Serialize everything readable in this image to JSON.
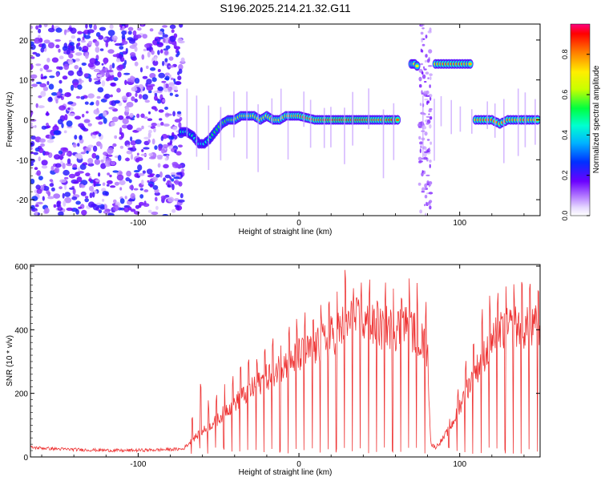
{
  "figure_title": "S196.2025.214.21.32.G11",
  "chart_data": [
    {
      "type": "heatmap",
      "xlabel": "Height of straight line (km)",
      "ylabel": "Frequency (Hz)",
      "xlim": [
        -167,
        150
      ],
      "ylim": [
        -24,
        24
      ],
      "x_ticks": [
        -100,
        0,
        100
      ],
      "x_tick_labels": [
        "-100",
        "0",
        "100"
      ],
      "y_ticks": [
        -20,
        -10,
        0,
        10,
        20
      ],
      "y_tick_labels": [
        "-20",
        "-10",
        "0",
        "10",
        "20"
      ],
      "colorbar": {
        "label": "Normalized spectral amplitude",
        "range": [
          0.0,
          0.95
        ],
        "ticks": [
          0.0,
          0.2,
          0.4,
          0.6,
          0.8
        ],
        "tick_labels": [
          "0.0",
          "0.2",
          "0.4",
          "0.6",
          "0.8"
        ],
        "colormap": "rainbow"
      },
      "noise_region_x": [
        -167,
        -72
      ],
      "ridge": {
        "x": [
          -73,
          -70,
          -66,
          -62,
          -59,
          -56,
          -52,
          -48,
          -44,
          -40,
          -36,
          -32,
          -28,
          -24,
          -20,
          -16,
          -12,
          -8,
          -4,
          0,
          10,
          20,
          30,
          40,
          50,
          58,
          63,
          66,
          70,
          72,
          75,
          80,
          85,
          90,
          95,
          100,
          105,
          108,
          109,
          110,
          115,
          120,
          125,
          130,
          135,
          140,
          145,
          150
        ],
        "y": [
          -3,
          -3,
          -4,
          -6,
          -6,
          -5,
          -3,
          -1,
          0,
          0,
          1,
          1,
          1,
          0,
          1,
          0,
          0,
          1,
          1,
          1,
          0,
          0,
          0,
          0,
          0,
          0,
          0,
          null,
          14,
          14,
          13,
          null,
          14,
          14,
          14,
          14,
          14,
          14,
          null,
          0,
          0,
          0,
          -1,
          0,
          0,
          0,
          0,
          0
        ],
        "amplitude": [
          0.5,
          0.45,
          0.5,
          0.4,
          0.45,
          0.5,
          0.55,
          0.6,
          0.6,
          0.65,
          0.7,
          0.7,
          0.75,
          0.7,
          0.75,
          0.8,
          0.75,
          0.8,
          0.8,
          0.85,
          0.85,
          0.9,
          0.9,
          0.9,
          0.85,
          0.9,
          0.85,
          null,
          0.7,
          0.75,
          0.7,
          null,
          0.8,
          0.85,
          0.85,
          0.85,
          0.8,
          0.8,
          null,
          0.8,
          0.85,
          0.85,
          0.8,
          0.85,
          0.8,
          0.85,
          0.8,
          0.8
        ]
      },
      "grid": false
    },
    {
      "type": "line",
      "xlabel": "Height of straight line (km)",
      "ylabel": "SNR (10 * v/v)",
      "xlim": [
        -167,
        150
      ],
      "ylim": [
        0,
        605
      ],
      "x_ticks": [
        -100,
        0,
        100
      ],
      "x_tick_labels": [
        "-100",
        "0",
        "100"
      ],
      "y_ticks": [
        0,
        200,
        400,
        600
      ],
      "y_tick_labels": [
        "0",
        "200",
        "400",
        "600"
      ],
      "color": "#ee3333",
      "x": [
        -167,
        -150,
        -130,
        -110,
        -90,
        -72,
        -65,
        -60,
        -55,
        -50,
        -45,
        -40,
        -35,
        -30,
        -25,
        -20,
        -15,
        -10,
        -5,
        0,
        5,
        10,
        15,
        20,
        25,
        30,
        35,
        40,
        45,
        50,
        55,
        60,
        65,
        70,
        75,
        80,
        82,
        85,
        90,
        95,
        100,
        105,
        110,
        115,
        120,
        125,
        130,
        135,
        140,
        145,
        150
      ],
      "y": [
        30,
        25,
        22,
        20,
        22,
        25,
        60,
        80,
        100,
        120,
        150,
        170,
        190,
        210,
        230,
        250,
        270,
        290,
        300,
        320,
        330,
        340,
        360,
        380,
        400,
        420,
        430,
        420,
        410,
        400,
        410,
        400,
        420,
        400,
        380,
        330,
        40,
        30,
        60,
        100,
        160,
        220,
        270,
        320,
        360,
        390,
        400,
        410,
        405,
        400,
        420
      ],
      "spike_peak": [
        60,
        60,
        60,
        60,
        60,
        60,
        150,
        270,
        150,
        220,
        280,
        250,
        310,
        320,
        330,
        360,
        380,
        390,
        420,
        450,
        460,
        470,
        500,
        520,
        580,
        600,
        550,
        560,
        580,
        560,
        570,
        580,
        560,
        570,
        540,
        480,
        60,
        60,
        80,
        150,
        240,
        350,
        420,
        480,
        530,
        560,
        560,
        570,
        560,
        560,
        560
      ],
      "spike_spacing_km": 5,
      "grid": false
    }
  ]
}
